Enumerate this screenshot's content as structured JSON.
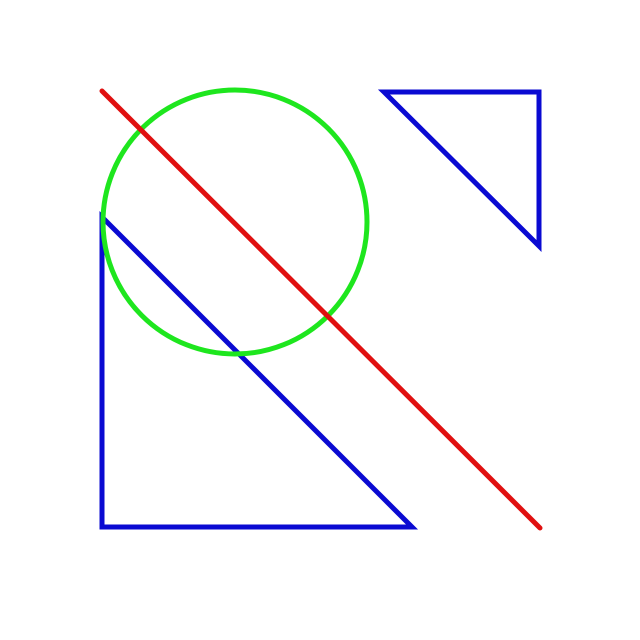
{
  "colors": {
    "background": "#ffffff",
    "triangle": "#0a0ad2",
    "circle": "#1ee61e",
    "line": "#e01010"
  },
  "shapes": [
    {
      "kind": "triangle",
      "name": "large-blue-triangle",
      "color_key": "triangle"
    },
    {
      "kind": "triangle",
      "name": "small-blue-triangle",
      "color_key": "triangle"
    },
    {
      "kind": "circle",
      "name": "green-circle",
      "color_key": "circle"
    },
    {
      "kind": "line",
      "name": "red-diagonal-line",
      "color_key": "line"
    }
  ]
}
